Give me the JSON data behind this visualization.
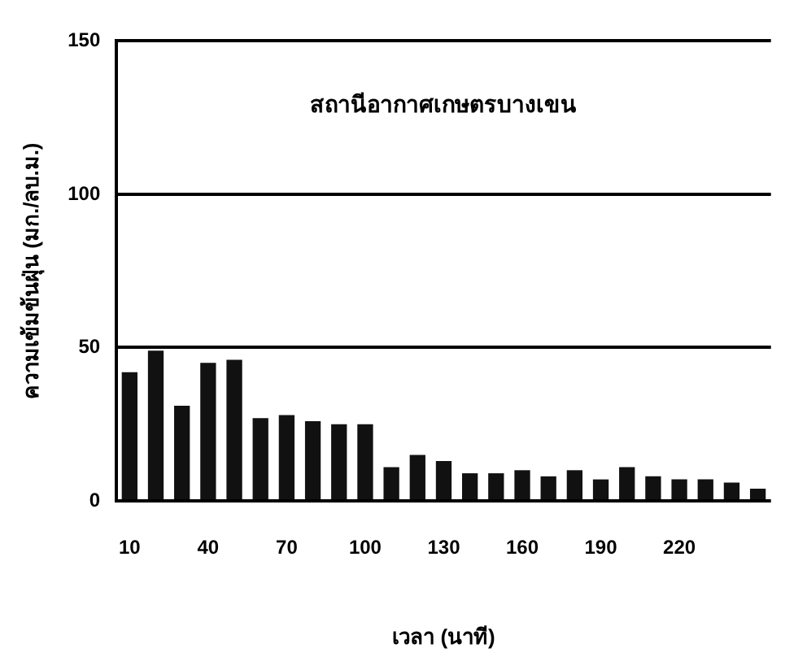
{
  "chart_data": {
    "type": "bar",
    "title": "สถานีอากาศเกษตรบางเขน",
    "xlabel": "เวลา (นาที)",
    "ylabel": "ความเข้มข้นฝุ่น (มก./ลบ.ม.)",
    "categories": [
      "10",
      null,
      null,
      "40",
      null,
      null,
      "70",
      null,
      null,
      "100",
      null,
      null,
      "130",
      null,
      null,
      "160",
      null,
      null,
      "190",
      null,
      null,
      "220",
      null,
      null,
      null
    ],
    "values": [
      42,
      49,
      31,
      45,
      46,
      27,
      28,
      26,
      25,
      25,
      11,
      15,
      13,
      9,
      9,
      10,
      8,
      10,
      7,
      11,
      8,
      7,
      7,
      6,
      4
    ],
    "color": "#111111",
    "ylim": [
      0,
      150
    ],
    "yticks": [
      0,
      50,
      100,
      150
    ],
    "grid": "y"
  }
}
